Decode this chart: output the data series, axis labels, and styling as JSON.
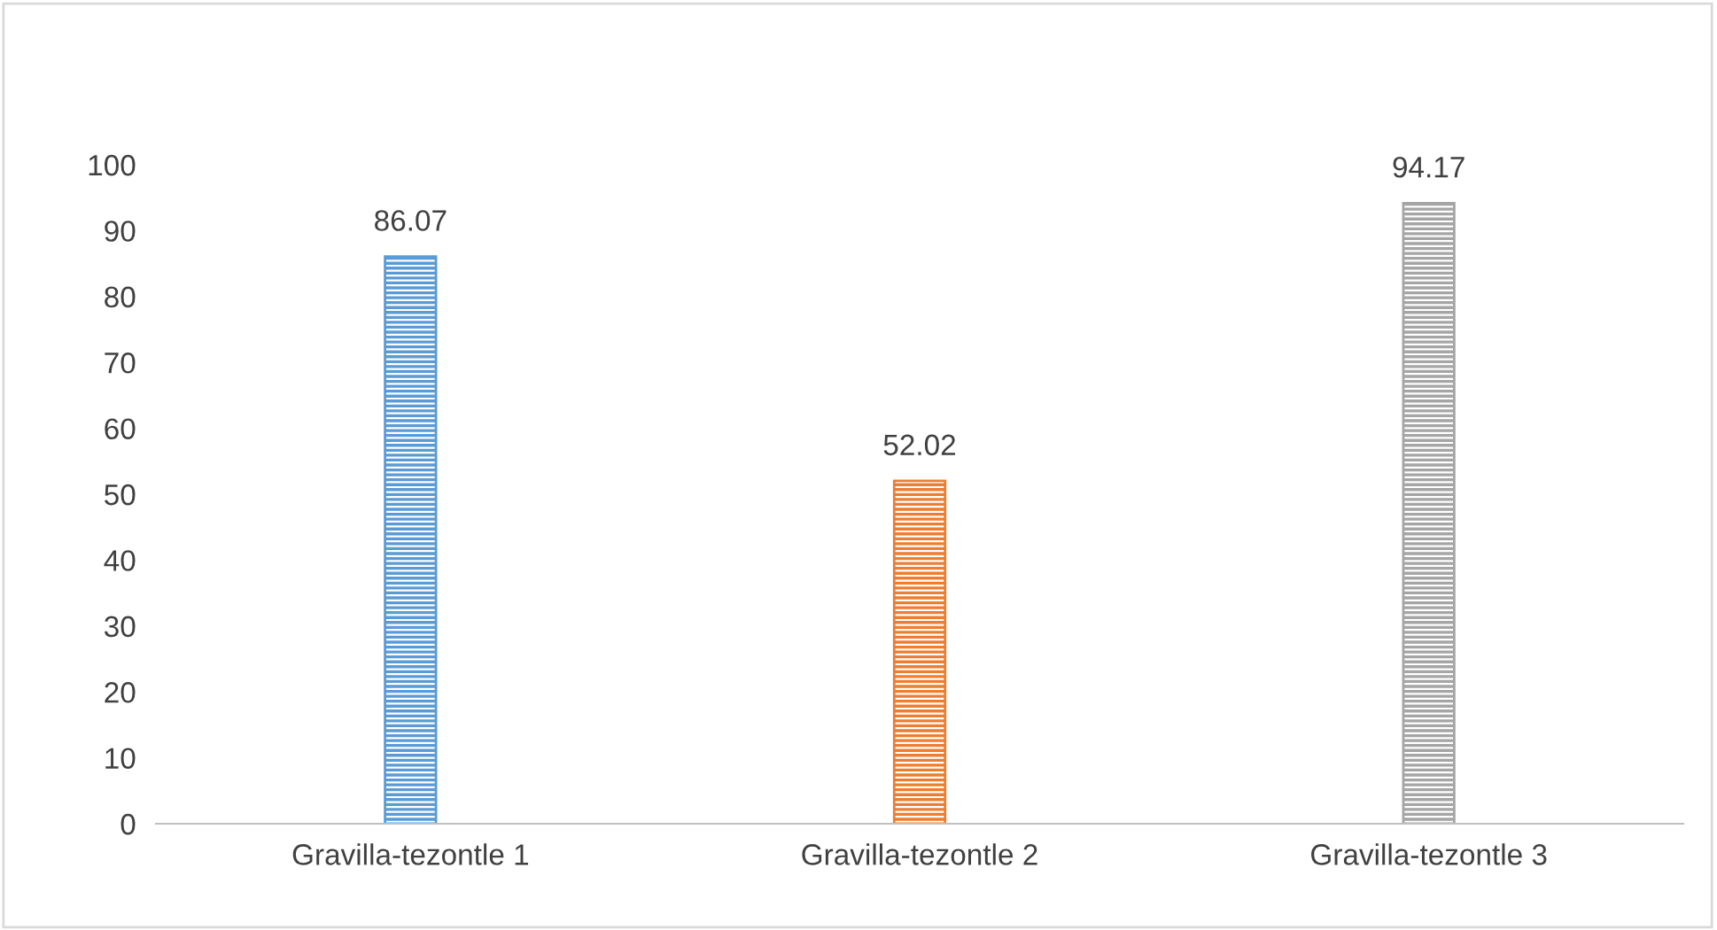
{
  "chart_data": {
    "type": "bar",
    "categories": [
      "Gravilla-tezontle 1",
      "Gravilla-tezontle 2",
      "Gravilla-tezontle 3"
    ],
    "values": [
      86.07,
      52.02,
      94.17
    ],
    "colors": [
      "#5b9bd5",
      "#ed7d31",
      "#a5a5a5"
    ],
    "ylim": [
      0,
      100
    ],
    "yticks": [
      0,
      10,
      20,
      30,
      40,
      50,
      60,
      70,
      80,
      90,
      100
    ],
    "grid": false,
    "data_labels": true
  }
}
